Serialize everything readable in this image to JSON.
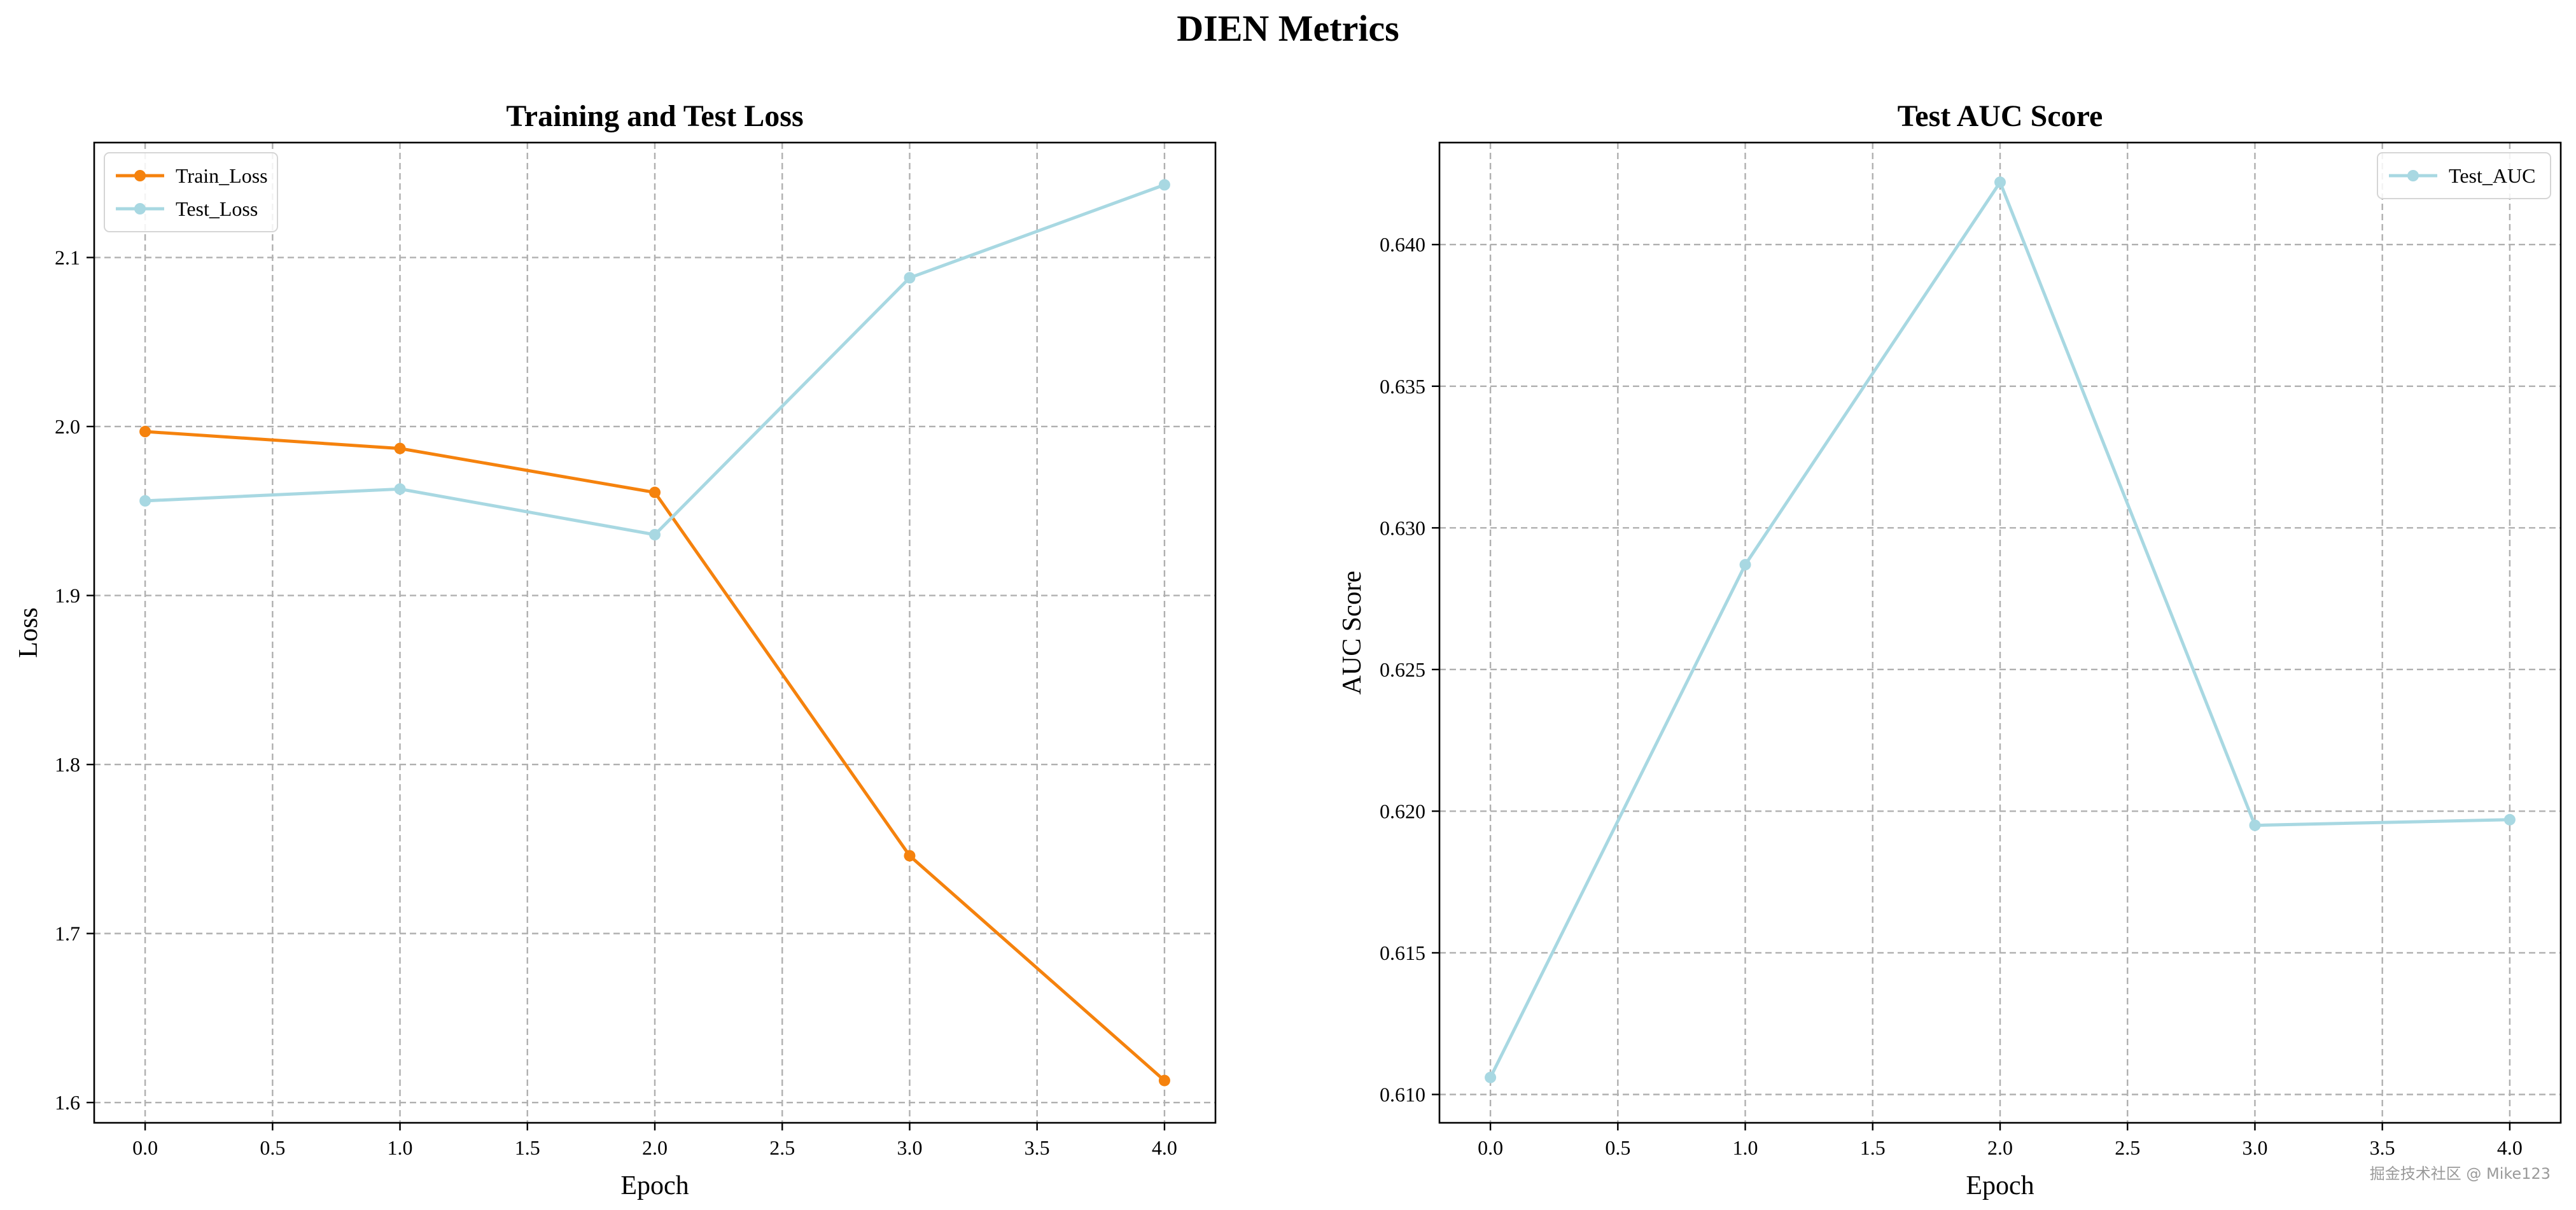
{
  "figure": {
    "title": "DIEN Metrics",
    "watermark": "掘金技术社区 @ Mike123"
  },
  "chart_data": [
    {
      "type": "line",
      "title": "Training and Test Loss",
      "xlabel": "Epoch",
      "ylabel": "Loss",
      "x": [
        0,
        1,
        2,
        3,
        4
      ],
      "xlim": [
        -0.2,
        4.2
      ],
      "ylim": [
        1.588,
        2.168
      ],
      "xticks": [
        0.0,
        0.5,
        1.0,
        1.5,
        2.0,
        2.5,
        3.0,
        3.5,
        4.0
      ],
      "xtick_labels": [
        "0.0",
        "0.5",
        "1.0",
        "1.5",
        "2.0",
        "2.5",
        "3.0",
        "3.5",
        "4.0"
      ],
      "yticks": [
        1.6,
        1.7,
        1.8,
        1.9,
        2.0,
        2.1
      ],
      "ytick_labels": [
        "1.6",
        "1.7",
        "1.8",
        "1.9",
        "2.0",
        "2.1"
      ],
      "grid": true,
      "legend_position": "upper-left",
      "series": [
        {
          "name": "Train_Loss",
          "color": "#f5820d",
          "values": [
            1.997,
            1.987,
            1.961,
            1.746,
            1.613
          ]
        },
        {
          "name": "Test_Loss",
          "color": "#a8d8e2",
          "values": [
            1.956,
            1.963,
            1.936,
            2.088,
            2.143
          ]
        }
      ]
    },
    {
      "type": "line",
      "title": "Test AUC Score",
      "xlabel": "Epoch",
      "ylabel": "AUC Score",
      "x": [
        0,
        1,
        2,
        3,
        4
      ],
      "xlim": [
        -0.2,
        4.2
      ],
      "ylim": [
        0.609,
        0.6436
      ],
      "xticks": [
        0.0,
        0.5,
        1.0,
        1.5,
        2.0,
        2.5,
        3.0,
        3.5,
        4.0
      ],
      "xtick_labels": [
        "0.0",
        "0.5",
        "1.0",
        "1.5",
        "2.0",
        "2.5",
        "3.0",
        "3.5",
        "4.0"
      ],
      "yticks": [
        0.61,
        0.615,
        0.62,
        0.625,
        0.63,
        0.635,
        0.64
      ],
      "ytick_labels": [
        "0.610",
        "0.615",
        "0.620",
        "0.625",
        "0.630",
        "0.635",
        "0.640"
      ],
      "grid": true,
      "legend_position": "upper-right",
      "series": [
        {
          "name": "Test_AUC",
          "color": "#a8d8e2",
          "values": [
            0.6106,
            0.6287,
            0.6422,
            0.6195,
            0.6197
          ]
        }
      ]
    }
  ]
}
